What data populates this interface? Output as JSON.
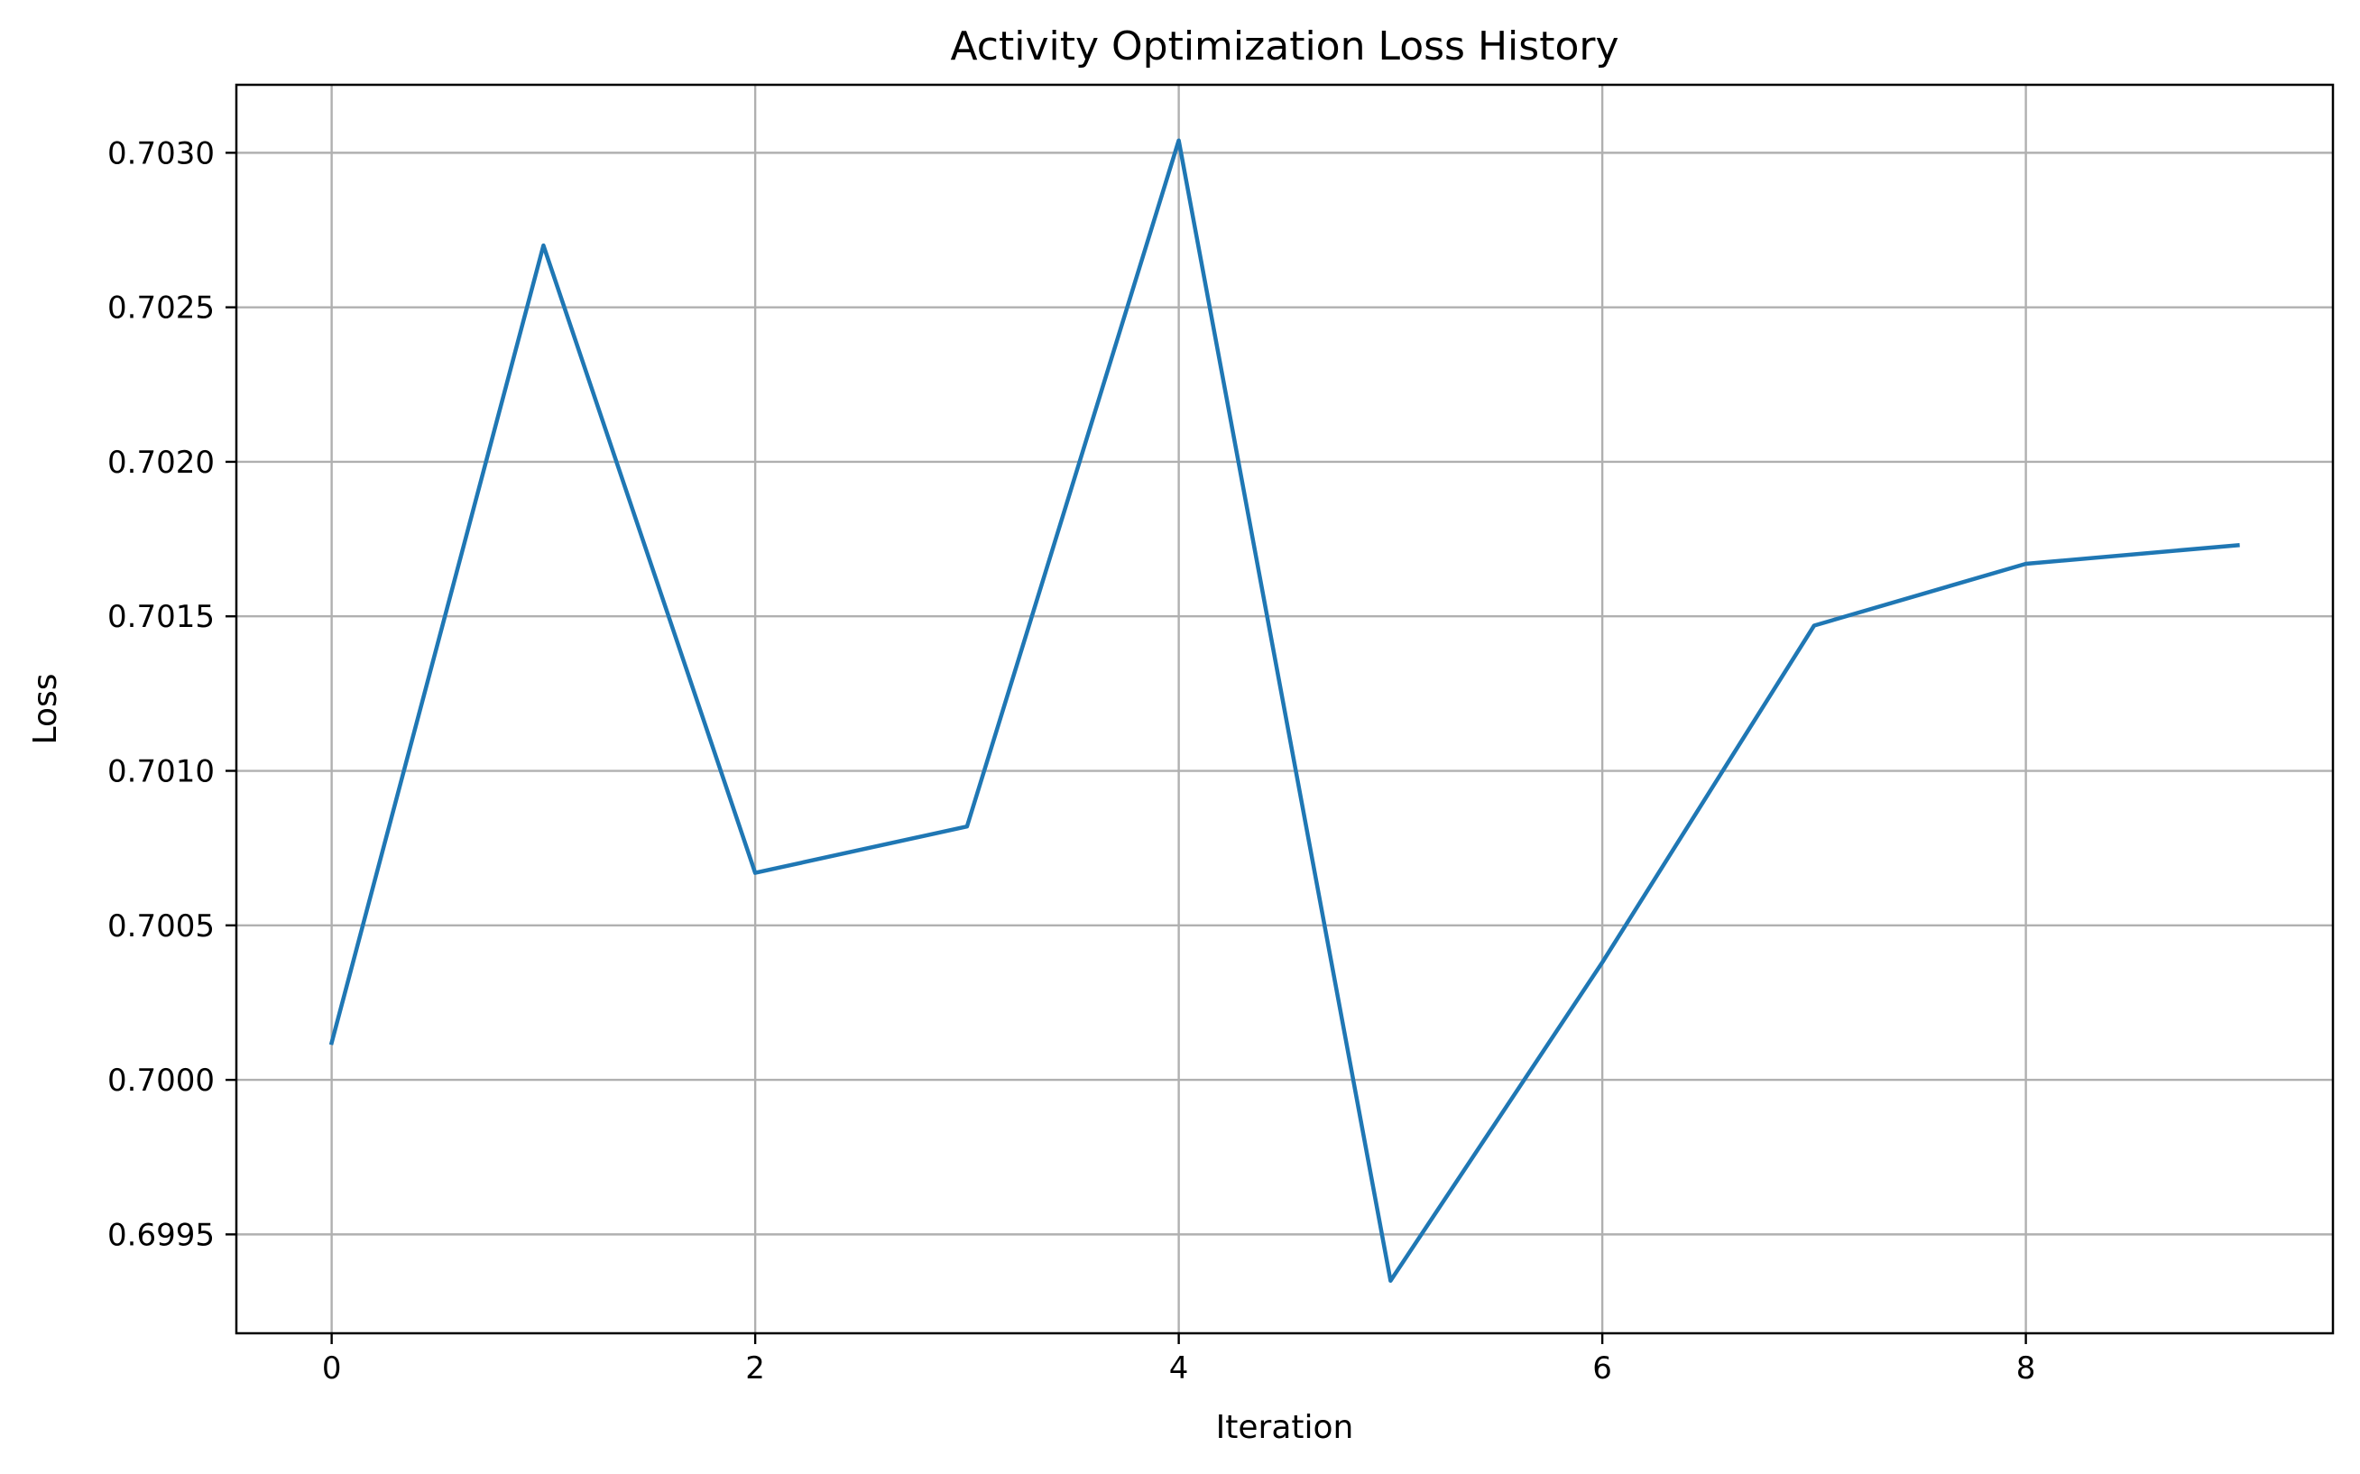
{
  "chart_data": {
    "type": "line",
    "title": "Activity Optimization Loss History",
    "xlabel": "Iteration",
    "ylabel": "Loss",
    "xlim": [
      -0.45,
      9.45
    ],
    "ylim": [
      0.69918,
      0.70322
    ],
    "x_ticks": [
      0,
      2,
      4,
      6,
      8
    ],
    "x_tick_labels": [
      "0",
      "2",
      "4",
      "6",
      "8"
    ],
    "y_ticks": [
      0.6995,
      0.7,
      0.7005,
      0.701,
      0.7015,
      0.702,
      0.7025,
      0.703
    ],
    "y_tick_labels": [
      "0.6995",
      "0.7000",
      "0.7005",
      "0.7010",
      "0.7015",
      "0.7020",
      "0.7025",
      "0.7030"
    ],
    "grid": true,
    "legend": "none",
    "series": [
      {
        "color": "#1f77b4",
        "x": [
          0,
          1,
          2,
          3,
          4,
          5,
          6,
          7,
          8,
          9
        ],
        "values": [
          0.70012,
          0.7027,
          0.70067,
          0.70082,
          0.70304,
          0.69935,
          0.70038,
          0.70147,
          0.70167,
          0.70173
        ]
      }
    ]
  }
}
